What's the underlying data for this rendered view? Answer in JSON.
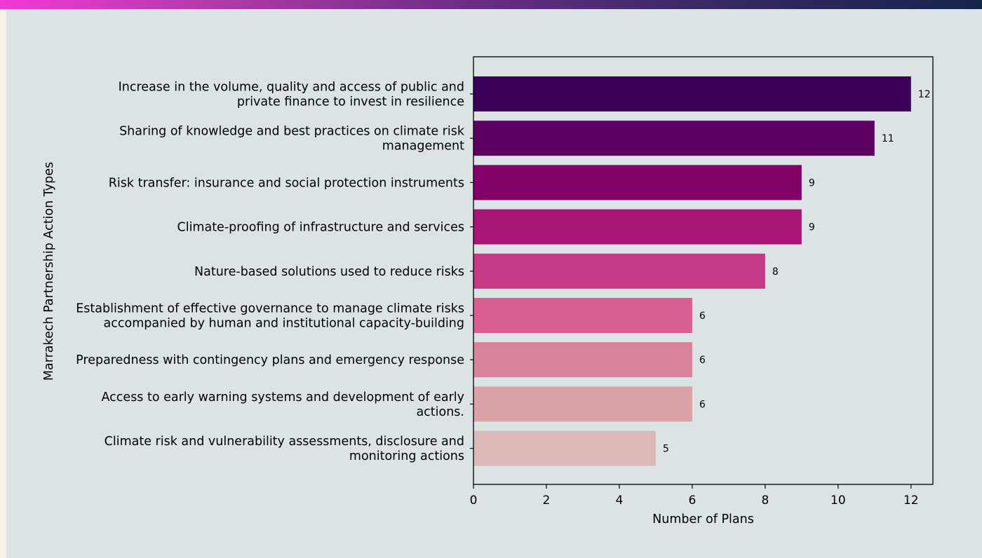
{
  "chart_data": {
    "type": "bar",
    "orientation": "horizontal",
    "title": "",
    "xlabel": "Number of Plans",
    "ylabel": "Marrakech Partnership Action Types",
    "xlim": [
      0,
      12.6
    ],
    "xticks": [
      0,
      2,
      4,
      6,
      8,
      10,
      12
    ],
    "grid": false,
    "categories": [
      [
        "Increase in the volume, quality and access of public and",
        "private finance to invest in resilience"
      ],
      [
        "Sharing of knowledge and best practices on climate risk",
        "management"
      ],
      [
        "Risk transfer: insurance and social protection instruments"
      ],
      [
        "Climate-proofing of infrastructure and services"
      ],
      [
        "Nature-based solutions used to reduce risks"
      ],
      [
        "Establishment of effective governance to manage climate risks",
        "accompanied by human and institutional capacity-building"
      ],
      [
        "Preparedness with contingency plans and emergency response"
      ],
      [
        "Access to early warning systems and development of early",
        "actions."
      ],
      [
        "Climate risk and vulnerability assessments, disclosure and",
        "monitoring actions"
      ]
    ],
    "values": [
      12,
      11,
      9,
      9,
      8,
      6,
      6,
      6,
      5
    ],
    "colors": [
      "#3d0059",
      "#5c0062",
      "#830069",
      "#a81575",
      "#c43a87",
      "#d95f93",
      "#d9829b",
      "#dba2a8",
      "#dbb9b8"
    ]
  }
}
